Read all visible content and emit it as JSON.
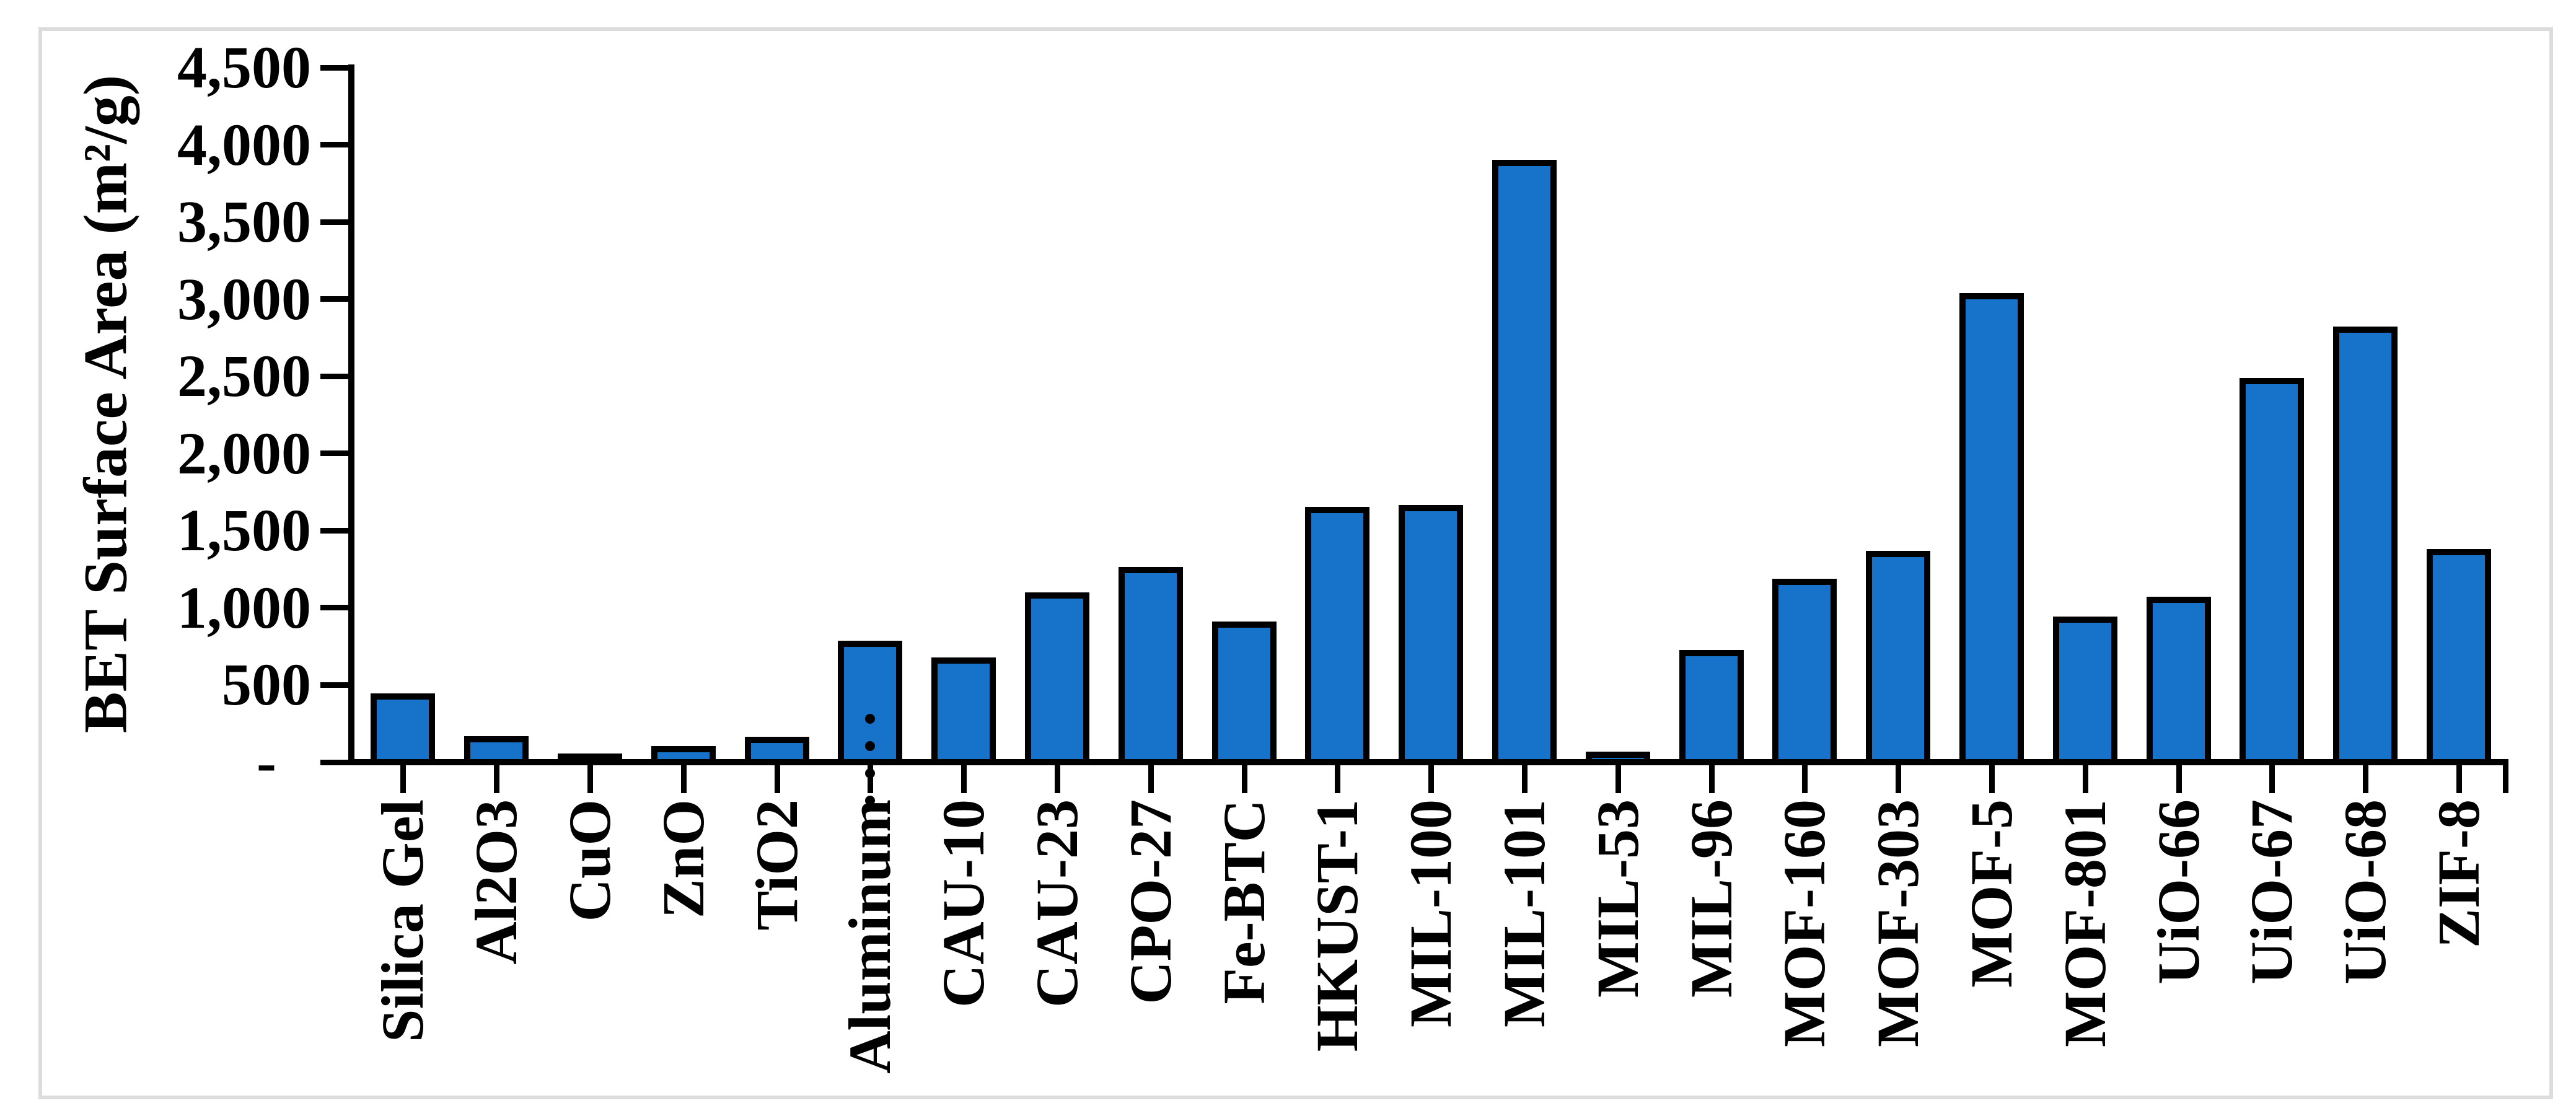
{
  "chart_data": {
    "type": "bar",
    "title": "",
    "xlabel": "",
    "ylabel": "BET Surface Area (m²/g)",
    "ylim": [
      0,
      4500
    ],
    "y_tick_step": 500,
    "y_tick_labels_bottom_to_top": [
      "-",
      "500",
      "1,000",
      "1,500",
      "2,000",
      "2,500",
      "3,000",
      "3,500",
      "4,000",
      "4,500"
    ],
    "grid": false,
    "legend": "none",
    "bar_fill_color": "#1773C9",
    "bar_border_color": "#000000",
    "frame_border_color": "#DCDCDC",
    "categories": [
      "Silica Gel",
      "Al2O3",
      "CuO",
      "ZnO",
      "TiO2",
      "Aluminum…",
      "CAU-10",
      "CAU-23",
      "CPO-27",
      "Fe-BTC",
      "HKUST-1",
      "MIL-100",
      "MIL-101",
      "MIL-53",
      "MIL-96",
      "MOF-160",
      "MOF-303",
      "MOF-5",
      "MOF-801",
      "UiO-66",
      "UiO-67",
      "UiO-68",
      "ZIF-8"
    ],
    "values": [
      405,
      130,
      15,
      65,
      125,
      745,
      640,
      1060,
      1225,
      870,
      1615,
      1625,
      3860,
      30,
      685,
      1150,
      1330,
      3000,
      905,
      1030,
      2450,
      2780,
      1340
    ]
  }
}
